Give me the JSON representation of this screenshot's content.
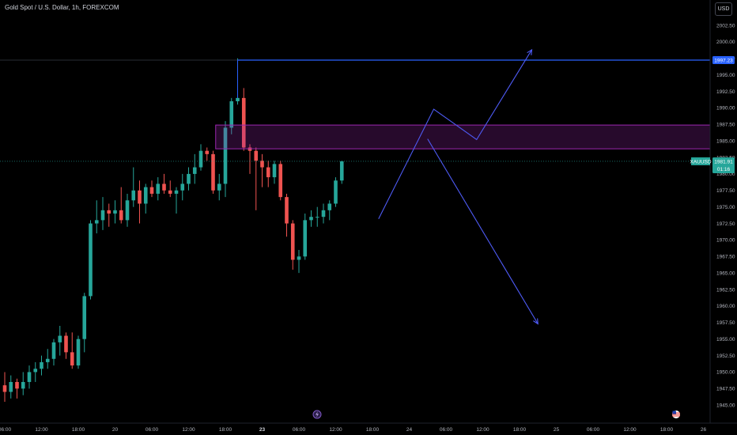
{
  "header": {
    "title": "Gold Spot / U.S. Dollar, 1h, FOREXCOM",
    "currency_button": "USD"
  },
  "chart_data": {
    "type": "candlestick",
    "symbol": "XAUUSD",
    "ylim": [
      1944.0,
      2006.0
    ],
    "y_ticks": [
      "2002.50",
      "2000.00",
      "1997.50",
      "1995.00",
      "1992.50",
      "1990.00",
      "1987.50",
      "1985.00",
      "1982.50",
      "1980.00",
      "1977.50",
      "1975.00",
      "1972.50",
      "1970.00",
      "1967.50",
      "1965.00",
      "1962.50",
      "1960.00",
      "1957.50",
      "1955.00",
      "1952.50",
      "1950.00",
      "1947.50",
      "1945.00"
    ],
    "x_ticks": [
      {
        "label": "06:00",
        "i": 0
      },
      {
        "label": "12:00",
        "i": 6
      },
      {
        "label": "18:00",
        "i": 12
      },
      {
        "label": "20",
        "i": 18
      },
      {
        "label": "06:00",
        "i": 24
      },
      {
        "label": "12:00",
        "i": 30
      },
      {
        "label": "18:00",
        "i": 36
      },
      {
        "label": "23",
        "i": 42,
        "bold": true
      },
      {
        "label": "06:00",
        "i": 48
      },
      {
        "label": "12:00",
        "i": 54
      },
      {
        "label": "18:00",
        "i": 60
      },
      {
        "label": "24",
        "i": 66
      },
      {
        "label": "06:00",
        "i": 72
      },
      {
        "label": "12:00",
        "i": 78
      },
      {
        "label": "18:00",
        "i": 84
      },
      {
        "label": "25",
        "i": 90
      },
      {
        "label": "06:00",
        "i": 96
      },
      {
        "label": "12:00",
        "i": 102
      },
      {
        "label": "18:00",
        "i": 108
      },
      {
        "label": "26",
        "i": 114
      }
    ],
    "candles": [
      {
        "o": 1948.0,
        "h": 1950.0,
        "l": 1945.5,
        "c": 1947.0
      },
      {
        "o": 1947.0,
        "h": 1949.5,
        "l": 1946.0,
        "c": 1948.5
      },
      {
        "o": 1948.5,
        "h": 1949.0,
        "l": 1946.0,
        "c": 1947.5
      },
      {
        "o": 1947.5,
        "h": 1950.0,
        "l": 1946.5,
        "c": 1948.5
      },
      {
        "o": 1948.5,
        "h": 1951.0,
        "l": 1947.5,
        "c": 1950.0
      },
      {
        "o": 1950.0,
        "h": 1951.5,
        "l": 1948.5,
        "c": 1950.5
      },
      {
        "o": 1950.5,
        "h": 1952.5,
        "l": 1949.5,
        "c": 1951.5
      },
      {
        "o": 1951.5,
        "h": 1953.5,
        "l": 1950.5,
        "c": 1952.0
      },
      {
        "o": 1952.0,
        "h": 1955.0,
        "l": 1951.0,
        "c": 1954.5
      },
      {
        "o": 1954.5,
        "h": 1957.0,
        "l": 1952.5,
        "c": 1955.5
      },
      {
        "o": 1955.5,
        "h": 1956.0,
        "l": 1952.0,
        "c": 1953.0
      },
      {
        "o": 1953.0,
        "h": 1956.0,
        "l": 1950.5,
        "c": 1951.0
      },
      {
        "o": 1951.0,
        "h": 1955.5,
        "l": 1950.5,
        "c": 1955.0
      },
      {
        "o": 1955.0,
        "h": 1962.0,
        "l": 1953.0,
        "c": 1961.5
      },
      {
        "o": 1961.5,
        "h": 1973.0,
        "l": 1961.0,
        "c": 1972.5
      },
      {
        "o": 1972.5,
        "h": 1976.0,
        "l": 1971.0,
        "c": 1973.0
      },
      {
        "o": 1973.0,
        "h": 1976.5,
        "l": 1971.5,
        "c": 1974.5
      },
      {
        "o": 1974.5,
        "h": 1975.5,
        "l": 1972.0,
        "c": 1974.0
      },
      {
        "o": 1974.0,
        "h": 1976.0,
        "l": 1972.5,
        "c": 1974.5
      },
      {
        "o": 1974.5,
        "h": 1978.0,
        "l": 1972.5,
        "c": 1973.0
      },
      {
        "o": 1973.0,
        "h": 1977.0,
        "l": 1972.0,
        "c": 1976.0
      },
      {
        "o": 1976.0,
        "h": 1981.0,
        "l": 1975.0,
        "c": 1977.5
      },
      {
        "o": 1977.5,
        "h": 1979.0,
        "l": 1972.5,
        "c": 1975.5
      },
      {
        "o": 1975.5,
        "h": 1978.5,
        "l": 1974.0,
        "c": 1978.0
      },
      {
        "o": 1978.0,
        "h": 1979.0,
        "l": 1976.5,
        "c": 1977.0
      },
      {
        "o": 1977.0,
        "h": 1979.5,
        "l": 1976.0,
        "c": 1978.5
      },
      {
        "o": 1978.5,
        "h": 1980.0,
        "l": 1977.0,
        "c": 1977.5
      },
      {
        "o": 1977.5,
        "h": 1979.0,
        "l": 1976.5,
        "c": 1977.0
      },
      {
        "o": 1977.0,
        "h": 1978.0,
        "l": 1974.0,
        "c": 1977.5
      },
      {
        "o": 1977.5,
        "h": 1980.0,
        "l": 1976.0,
        "c": 1978.5
      },
      {
        "o": 1978.5,
        "h": 1981.0,
        "l": 1977.5,
        "c": 1980.0
      },
      {
        "o": 1980.0,
        "h": 1983.0,
        "l": 1978.5,
        "c": 1981.0
      },
      {
        "o": 1981.0,
        "h": 1984.5,
        "l": 1980.5,
        "c": 1983.5
      },
      {
        "o": 1983.5,
        "h": 1984.0,
        "l": 1982.0,
        "c": 1983.0
      },
      {
        "o": 1983.0,
        "h": 1983.5,
        "l": 1977.0,
        "c": 1977.5
      },
      {
        "o": 1977.5,
        "h": 1980.0,
        "l": 1976.0,
        "c": 1978.5
      },
      {
        "o": 1978.5,
        "h": 1988.0,
        "l": 1976.5,
        "c": 1987.0
      },
      {
        "o": 1987.0,
        "h": 1991.5,
        "l": 1986.0,
        "c": 1991.0
      },
      {
        "o": 1991.0,
        "h": 1997.5,
        "l": 1990.5,
        "c": 1991.5
      },
      {
        "o": 1991.5,
        "h": 1993.0,
        "l": 1983.5,
        "c": 1984.0
      },
      {
        "o": 1984.0,
        "h": 1984.5,
        "l": 1980.0,
        "c": 1983.5
      },
      {
        "o": 1983.5,
        "h": 1984.0,
        "l": 1974.5,
        "c": 1982.0
      },
      {
        "o": 1982.0,
        "h": 1983.0,
        "l": 1978.0,
        "c": 1981.0
      },
      {
        "o": 1981.0,
        "h": 1982.0,
        "l": 1978.0,
        "c": 1979.5
      },
      {
        "o": 1979.5,
        "h": 1982.0,
        "l": 1978.5,
        "c": 1981.5
      },
      {
        "o": 1981.5,
        "h": 1982.0,
        "l": 1976.0,
        "c": 1976.5
      },
      {
        "o": 1976.5,
        "h": 1977.0,
        "l": 1970.5,
        "c": 1972.5
      },
      {
        "o": 1972.5,
        "h": 1973.0,
        "l": 1965.5,
        "c": 1967.0
      },
      {
        "o": 1967.0,
        "h": 1968.5,
        "l": 1965.0,
        "c": 1967.5
      },
      {
        "o": 1967.5,
        "h": 1974.0,
        "l": 1967.0,
        "c": 1973.0
      },
      {
        "o": 1973.0,
        "h": 1974.5,
        "l": 1972.0,
        "c": 1973.5
      },
      {
        "o": 1973.5,
        "h": 1975.0,
        "l": 1972.0,
        "c": 1973.5
      },
      {
        "o": 1973.5,
        "h": 1975.5,
        "l": 1972.5,
        "c": 1974.5
      },
      {
        "o": 1974.5,
        "h": 1976.0,
        "l": 1973.0,
        "c": 1975.5
      },
      {
        "o": 1975.5,
        "h": 1979.5,
        "l": 1975.0,
        "c": 1979.0
      },
      {
        "o": 1979.0,
        "h": 1982.0,
        "l": 1978.5,
        "c": 1981.9
      }
    ],
    "zone": {
      "low": 1983.8,
      "high": 1987.4,
      "from_i": 37
    },
    "resistance_level": 1997.23,
    "current_price": 1981.91,
    "current_label": "XAUUSD",
    "countdown": "01:16",
    "bull_path": [
      [
        61,
        1973.2
      ],
      [
        70,
        1989.8
      ],
      [
        77,
        1985.2
      ],
      [
        86,
        1998.8
      ]
    ],
    "bear_path": [
      [
        69,
        1985.3
      ],
      [
        87,
        1957.3
      ]
    ],
    "colors": {
      "up": "#26a69a",
      "down": "#ef5350",
      "zone_border": "#9c27b0",
      "zone_fill": "rgba(156,39,176,0.25)",
      "path": "#4e5bf5",
      "level": "#2962ff"
    }
  }
}
